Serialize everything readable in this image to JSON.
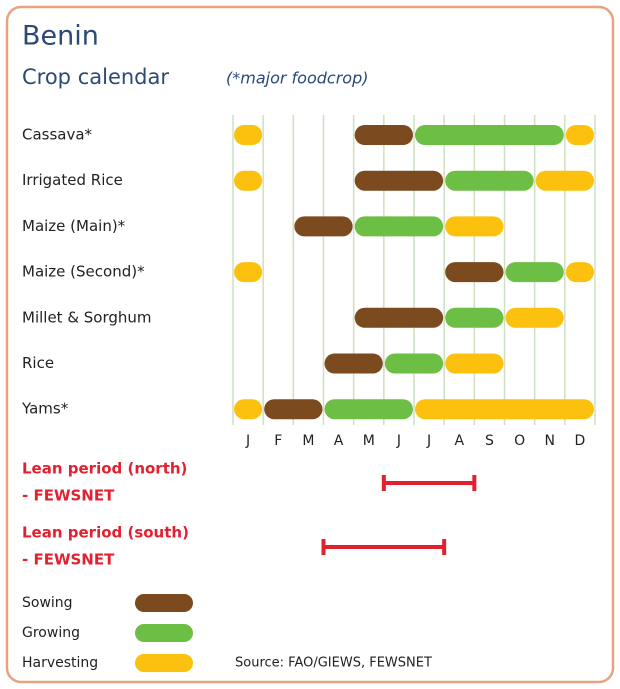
{
  "chart_data": {
    "type": "crop-calendar",
    "title": "Benin",
    "subtitle": "Crop calendar",
    "note": "(*major foodcrop)",
    "categories": [
      "Cassava*",
      "Irrigated Rice",
      "Maize (Main)*",
      "Maize (Second)*",
      "Millet & Sorghum",
      "Rice",
      "Yams*"
    ],
    "months": [
      "J",
      "F",
      "M",
      "A",
      "M",
      "J",
      "J",
      "A",
      "S",
      "O",
      "N",
      "D"
    ],
    "xlim": [
      0,
      12
    ],
    "xticks": [
      0,
      1,
      2,
      3,
      4,
      5,
      6,
      7,
      8,
      9,
      10,
      11,
      12
    ],
    "grid": true,
    "series": [
      {
        "name": "Sowing",
        "color": "#7b4a1e",
        "values": [
          [
            [
              4,
              6
            ]
          ],
          [
            [
              4,
              7
            ]
          ],
          [
            [
              2,
              4
            ]
          ],
          [
            [
              7,
              9
            ]
          ],
          [
            [
              4,
              7
            ]
          ],
          [
            [
              3,
              5
            ]
          ],
          [
            [
              1,
              3
            ]
          ]
        ]
      },
      {
        "name": "Growing",
        "color": "#6dbe45",
        "values": [
          [
            [
              6,
              11
            ]
          ],
          [
            [
              7,
              10
            ]
          ],
          [
            [
              4,
              7
            ]
          ],
          [
            [
              9,
              11
            ]
          ],
          [
            [
              7,
              9
            ]
          ],
          [
            [
              5,
              7
            ]
          ],
          [
            [
              3,
              6
            ]
          ]
        ]
      },
      {
        "name": "Harvesting",
        "color": "#fcc10f",
        "values": [
          [
            [
              0,
              1
            ],
            [
              11,
              12
            ]
          ],
          [
            [
              0,
              1
            ],
            [
              10,
              12
            ]
          ],
          [
            [
              7,
              9
            ]
          ],
          [
            [
              0,
              1
            ],
            [
              11,
              12
            ]
          ],
          [
            [
              9,
              11
            ]
          ],
          [
            [
              7,
              9
            ]
          ],
          [
            [
              0,
              1
            ],
            [
              6,
              12
            ]
          ]
        ]
      }
    ],
    "lean_periods": [
      {
        "label": [
          "Lean period (north)",
          "- FEWSNET"
        ],
        "color": "#e2202f",
        "range": [
          5,
          8
        ]
      },
      {
        "label": [
          "Lean period (south)",
          "- FEWSNET"
        ],
        "color": "#e2202f",
        "range": [
          3,
          7
        ]
      }
    ],
    "source": "Source: FAO/GIEWS, FEWSNET"
  }
}
